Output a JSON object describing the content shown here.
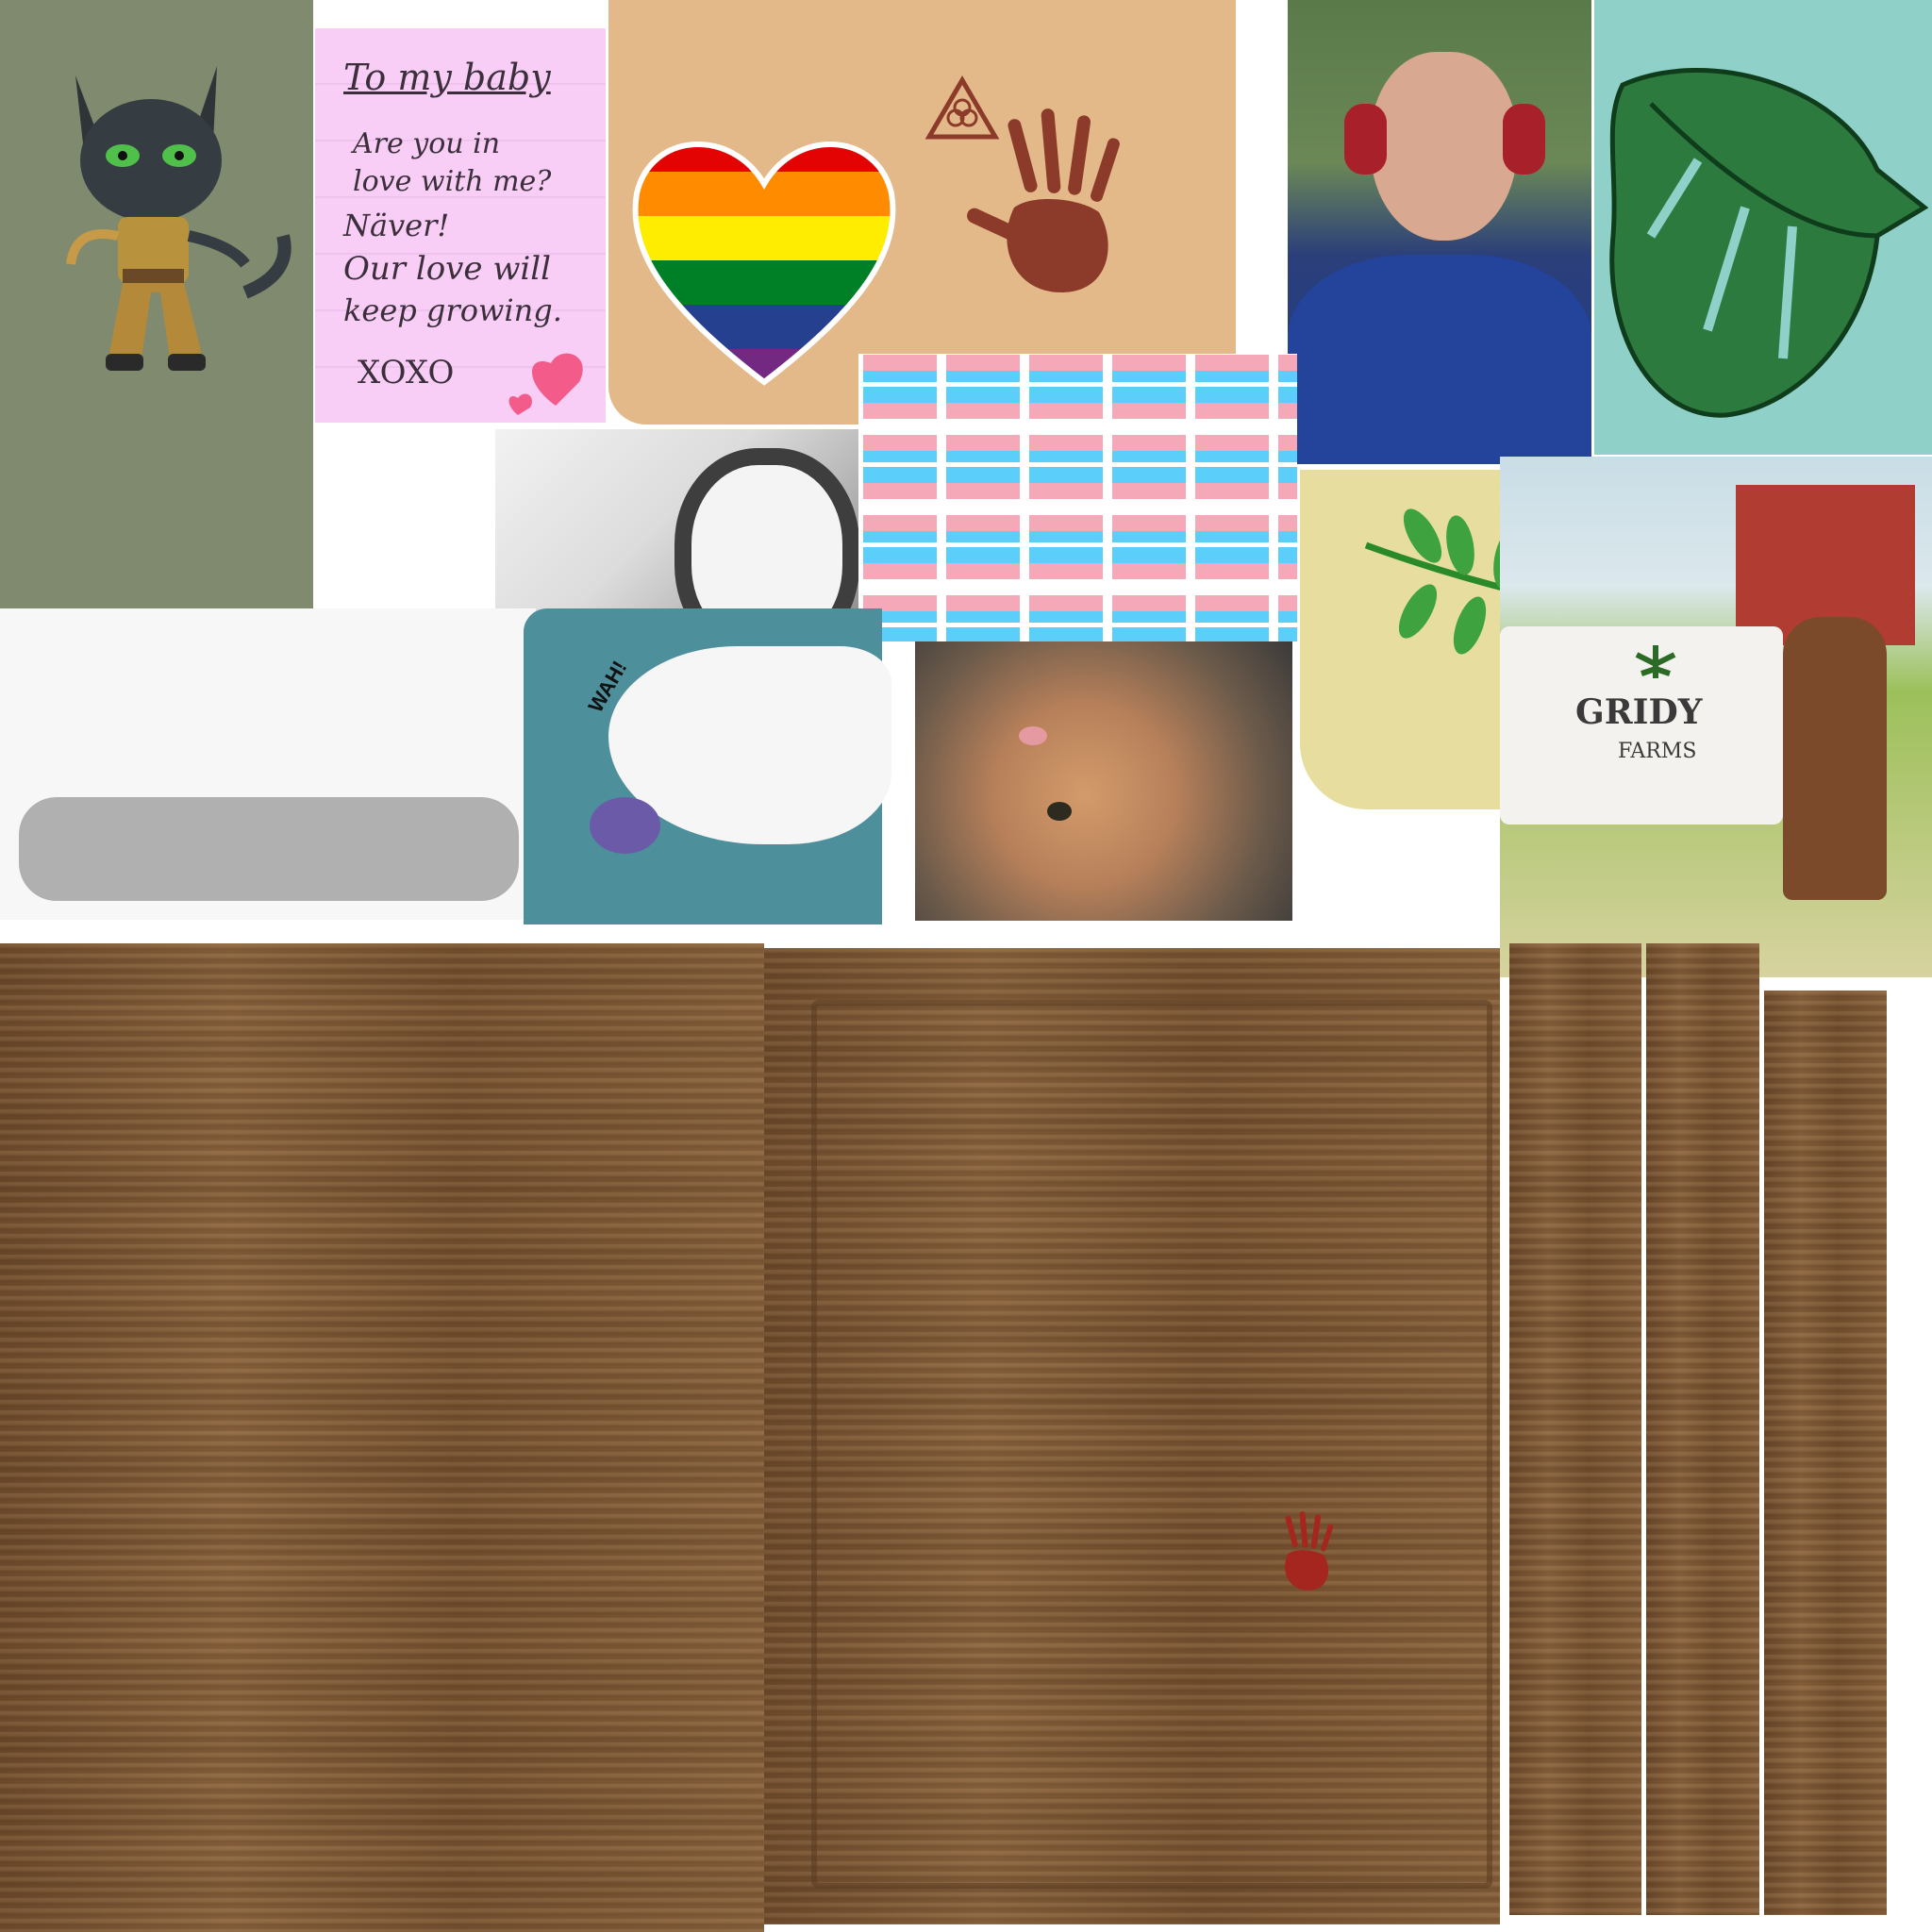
{
  "note": {
    "heading": "To my baby",
    "lines": [
      "Are you in",
      "love with me?",
      "Näver!",
      "Our love will",
      "keep growing."
    ],
    "signoff": "XOXO"
  },
  "cat_comic": {
    "sound": "WAH!"
  },
  "farm_sign": {
    "name": "GRIDY",
    "subtitle": "FARMS"
  },
  "colors": {
    "catPanel": "#7f8a6f",
    "notePaper": "#f8cdf6",
    "kraft": "#e3b98a",
    "handprint": "#8c3a2a",
    "mint": "#8fd1c9",
    "leafGreen": "#2d7a3e",
    "paleYellow": "#e6dd9f",
    "tealPanel": "#4e8f9c",
    "transBlue": "#5bcefa",
    "transPink": "#f5a9b8",
    "wood": "#7a5533"
  },
  "icons": [
    "cat-character-icon",
    "rainbow-heart-icon",
    "handprint-icon",
    "biohazard-triangle-icon",
    "monstera-leaf-icon",
    "leaf-branch-icon",
    "cannabis-leaf-icon"
  ]
}
